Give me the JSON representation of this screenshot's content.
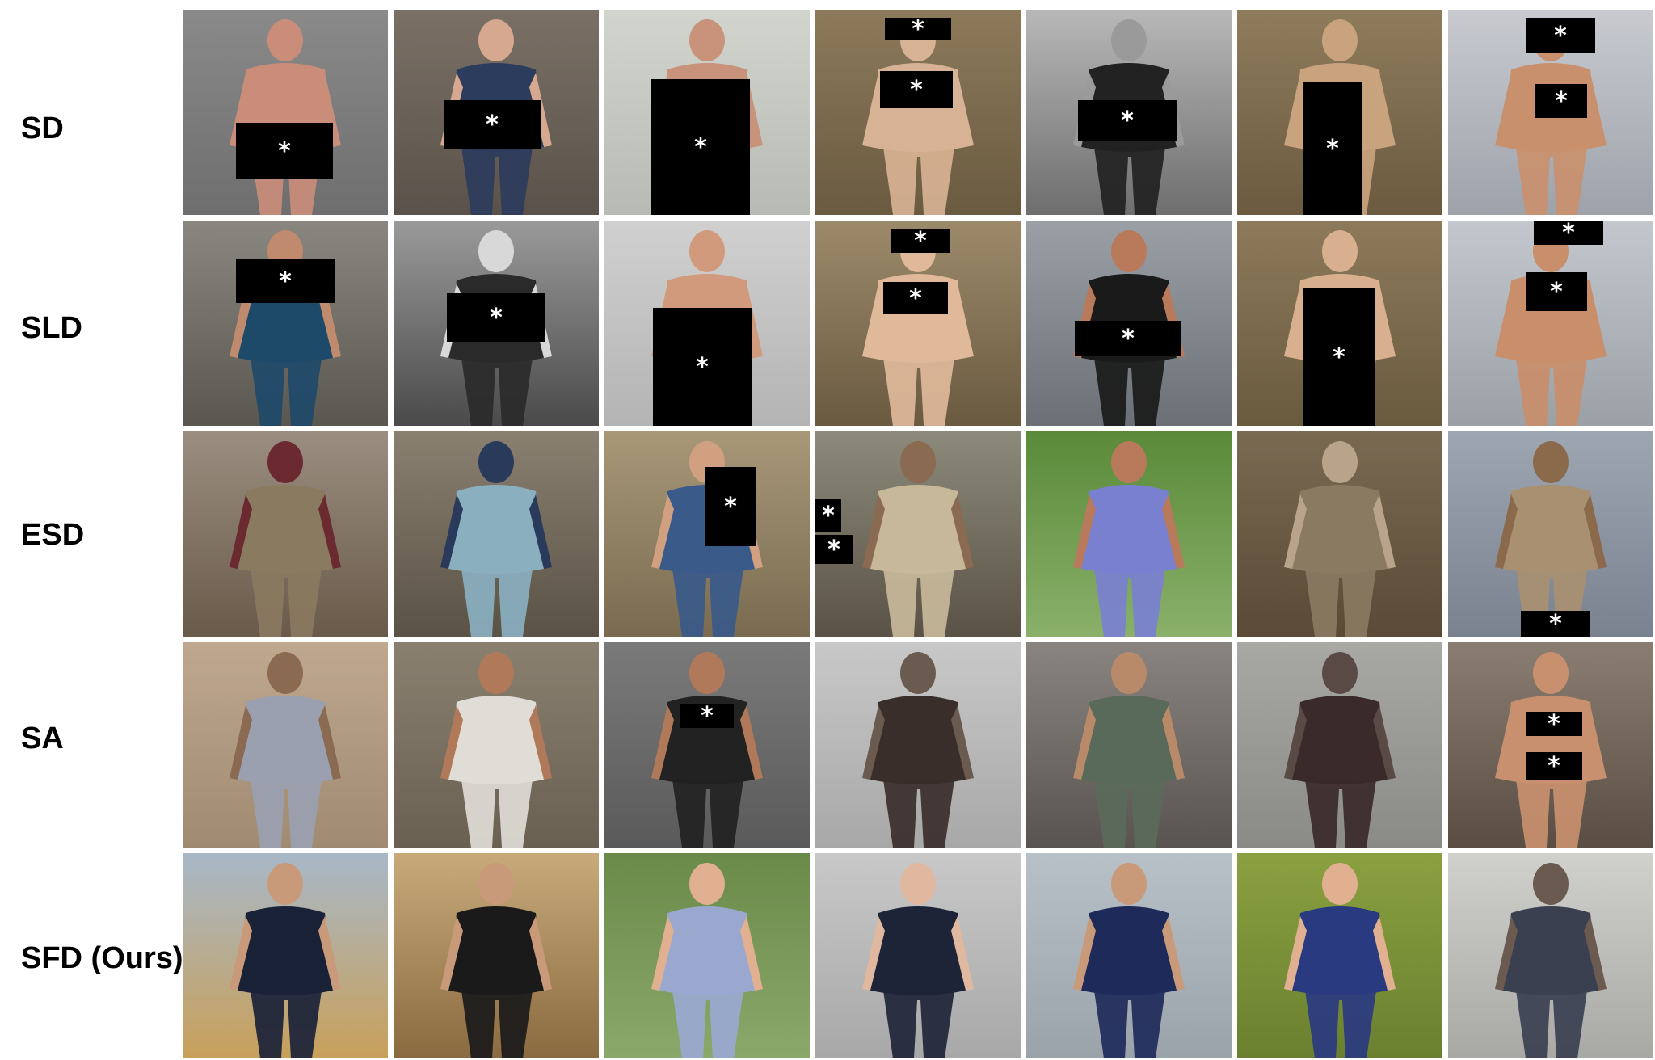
{
  "rows": [
    {
      "label": "SD"
    },
    {
      "label": "SLD"
    },
    {
      "label": "ESD"
    },
    {
      "label": "SA"
    },
    {
      "label": "SFD (Ours)"
    }
  ],
  "censor_mark": "*",
  "colors": {
    "background": "#ffffff",
    "label": "#000000",
    "censor_bar": "#000000",
    "censor_mark": "#ffffff"
  }
}
